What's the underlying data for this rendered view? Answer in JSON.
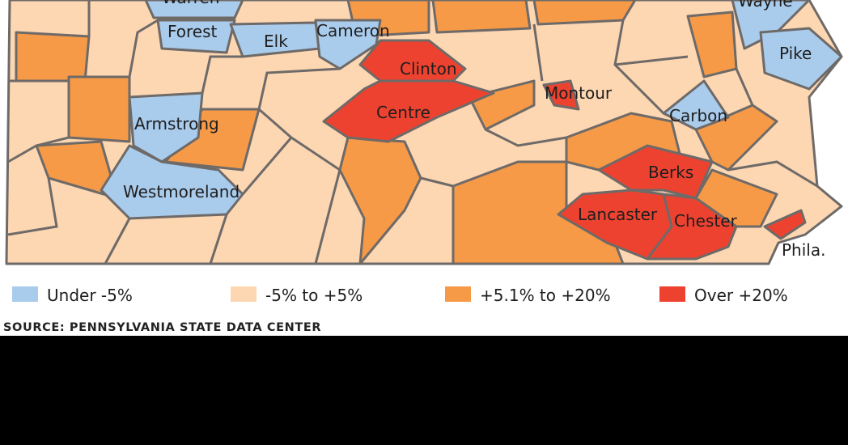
{
  "map": {
    "counties": [
      {
        "name": "Warren",
        "color": "#a9cbec"
      },
      {
        "name": "Wayne",
        "color": "#a9cbec"
      },
      {
        "name": "Forest",
        "color": "#a9cbec"
      },
      {
        "name": "Elk",
        "color": "#a9cbec"
      },
      {
        "name": "Cameron",
        "color": "#a9cbec"
      },
      {
        "name": "Pike",
        "color": "#a9cbec"
      },
      {
        "name": "Clinton",
        "color": "#ee4230"
      },
      {
        "name": "Montour",
        "color": "#ee4230"
      },
      {
        "name": "Centre",
        "color": "#ee4230"
      },
      {
        "name": "Armstrong",
        "color": "#a9cbec"
      },
      {
        "name": "Carbon",
        "color": "#a9cbec"
      },
      {
        "name": "Berks",
        "color": "#ee4230"
      },
      {
        "name": "Westmoreland",
        "color": "#a9cbec"
      },
      {
        "name": "Lancaster",
        "color": "#ee4230"
      },
      {
        "name": "Chester",
        "color": "#ee4230"
      },
      {
        "name": "Phila.",
        "color": "#ee4230"
      }
    ],
    "legend": [
      {
        "label": "Under -5%",
        "color": "#a9cbec"
      },
      {
        "label": "-5% to +5%",
        "color": "#fdd6b2"
      },
      {
        "label": "+5.1% to +20%",
        "color": "#f69a48"
      },
      {
        "label": "Over +20%",
        "color": "#ee4230"
      }
    ],
    "source": "SOURCE:  PENNSYLVANIA STATE DATA CENTER"
  }
}
